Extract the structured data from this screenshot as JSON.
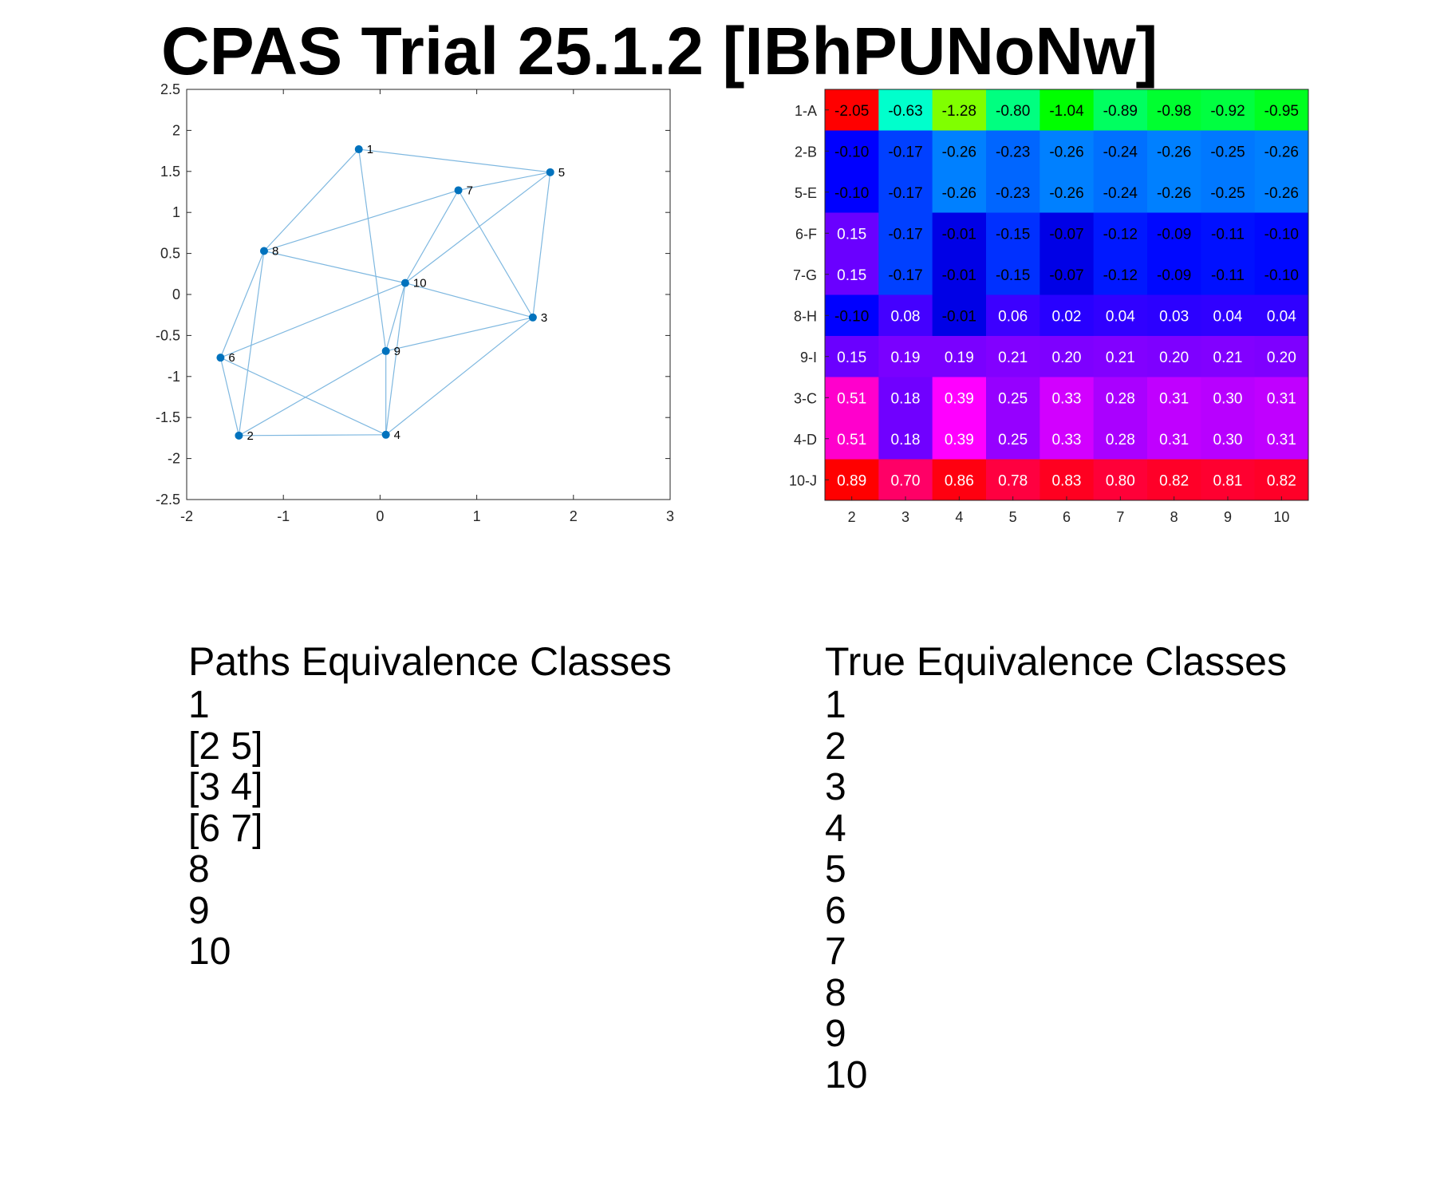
{
  "title": "CPAS Trial 25.1.2 [IBhPUNoNw]",
  "colors": {
    "node": "#0072BD",
    "edge": "#7fb8e0"
  },
  "chart_data": [
    {
      "type": "scatter",
      "xlim": [
        -2,
        3
      ],
      "ylim": [
        -2.5,
        2.5
      ],
      "xticks": [
        "-2",
        "-1",
        "0",
        "1",
        "2",
        "3"
      ],
      "yticks": [
        "2.5",
        "2",
        "1.5",
        "1",
        "0.5",
        "0",
        "-0.5",
        "-1",
        "-1.5",
        "-2",
        "-2.5"
      ],
      "grid": false,
      "nodes": [
        {
          "label": "1",
          "x": -0.22,
          "y": 1.77
        },
        {
          "label": "2",
          "x": -1.46,
          "y": -1.72
        },
        {
          "label": "3",
          "x": 1.58,
          "y": -0.28
        },
        {
          "label": "4",
          "x": 0.06,
          "y": -1.71
        },
        {
          "label": "5",
          "x": 1.76,
          "y": 1.49
        },
        {
          "label": "6",
          "x": -1.65,
          "y": -0.77
        },
        {
          "label": "7",
          "x": 0.81,
          "y": 1.27
        },
        {
          "label": "8",
          "x": -1.2,
          "y": 0.53
        },
        {
          "label": "9",
          "x": 0.06,
          "y": -0.69
        },
        {
          "label": "10",
          "x": 0.26,
          "y": 0.14
        }
      ],
      "edges": [
        [
          1,
          5
        ],
        [
          1,
          8
        ],
        [
          1,
          9
        ],
        [
          5,
          10
        ],
        [
          5,
          3
        ],
        [
          7,
          5
        ],
        [
          7,
          8
        ],
        [
          7,
          10
        ],
        [
          7,
          3
        ],
        [
          8,
          10
        ],
        [
          8,
          6
        ],
        [
          8,
          2
        ],
        [
          10,
          3
        ],
        [
          10,
          6
        ],
        [
          10,
          9
        ],
        [
          10,
          4
        ],
        [
          9,
          3
        ],
        [
          9,
          2
        ],
        [
          9,
          4
        ],
        [
          6,
          2
        ],
        [
          6,
          4
        ],
        [
          2,
          4
        ],
        [
          3,
          4
        ]
      ]
    },
    {
      "type": "heatmap",
      "x": [
        "2",
        "3",
        "4",
        "5",
        "6",
        "7",
        "8",
        "9",
        "10"
      ],
      "y": [
        "1-A",
        "2-B",
        "5-E",
        "6-F",
        "7-G",
        "8-H",
        "9-I",
        "3-C",
        "4-D",
        "10-J"
      ],
      "values": [
        [
          -2.05,
          -0.63,
          -1.28,
          -0.8,
          -1.04,
          -0.89,
          -0.98,
          -0.92,
          -0.95
        ],
        [
          -0.1,
          -0.17,
          -0.26,
          -0.23,
          -0.26,
          -0.24,
          -0.26,
          -0.25,
          -0.26
        ],
        [
          -0.1,
          -0.17,
          -0.26,
          -0.23,
          -0.26,
          -0.24,
          -0.26,
          -0.25,
          -0.26
        ],
        [
          0.15,
          -0.17,
          -0.01,
          -0.15,
          -0.07,
          -0.12,
          -0.09,
          -0.11,
          -0.1
        ],
        [
          0.15,
          -0.17,
          -0.01,
          -0.15,
          -0.07,
          -0.12,
          -0.09,
          -0.11,
          -0.1
        ],
        [
          -0.1,
          0.08,
          -0.01,
          0.06,
          0.02,
          0.04,
          0.03,
          0.04,
          0.04
        ],
        [
          0.15,
          0.19,
          0.19,
          0.21,
          0.2,
          0.21,
          0.2,
          0.21,
          0.2
        ],
        [
          0.51,
          0.18,
          0.39,
          0.25,
          0.33,
          0.28,
          0.31,
          0.3,
          0.31
        ],
        [
          0.51,
          0.18,
          0.39,
          0.25,
          0.33,
          0.28,
          0.31,
          0.3,
          0.31
        ],
        [
          0.89,
          0.7,
          0.86,
          0.78,
          0.83,
          0.8,
          0.82,
          0.81,
          0.82
        ]
      ],
      "cell_colors": [
        [
          "#ff0000",
          "#00ffcc",
          "#80ff00",
          "#00ff80",
          "#00ff00",
          "#00ff60",
          "#00ff30",
          "#00ff40",
          "#00ff20"
        ],
        [
          "#0000ff",
          "#0040ff",
          "#0080ff",
          "#0066ff",
          "#0080ff",
          "#0070ff",
          "#0080ff",
          "#0078ff",
          "#0080ff"
        ],
        [
          "#0000ff",
          "#0040ff",
          "#0080ff",
          "#0066ff",
          "#0080ff",
          "#0070ff",
          "#0080ff",
          "#0078ff",
          "#0080ff"
        ],
        [
          "#6a00ff",
          "#0040ff",
          "#0000e6",
          "#0030ff",
          "#0000e6",
          "#0018ff",
          "#0008ff",
          "#0010ff",
          "#0008ff"
        ],
        [
          "#6a00ff",
          "#0040ff",
          "#0000e6",
          "#0030ff",
          "#0000e6",
          "#0018ff",
          "#0008ff",
          "#0010ff",
          "#0008ff"
        ],
        [
          "#0000ff",
          "#4400ff",
          "#0000e6",
          "#3c00ff",
          "#2800ff",
          "#3000ff",
          "#2c00ff",
          "#3000ff",
          "#3000ff"
        ],
        [
          "#6a00ff",
          "#7a00ff",
          "#7a00ff",
          "#8200ff",
          "#7e00ff",
          "#8200ff",
          "#7e00ff",
          "#8200ff",
          "#7e00ff"
        ],
        [
          "#ff00cc",
          "#7000ff",
          "#ff00ff",
          "#9600ff",
          "#d200ff",
          "#aa00ff",
          "#c000ff",
          "#b800ff",
          "#c000ff"
        ],
        [
          "#ff00cc",
          "#7000ff",
          "#ff00ff",
          "#9600ff",
          "#d200ff",
          "#aa00ff",
          "#c000ff",
          "#b800ff",
          "#c000ff"
        ],
        [
          "#ff0000",
          "#ff0066",
          "#ff0010",
          "#ff0040",
          "#ff0020",
          "#ff0038",
          "#ff0028",
          "#ff0030",
          "#ff0028"
        ]
      ]
    }
  ],
  "paths_classes": {
    "heading": "Paths Equivalence Classes",
    "items": [
      "1",
      "[2 5]",
      "[3 4]",
      "[6 7]",
      "8",
      "9",
      "10"
    ]
  },
  "true_classes": {
    "heading": "True Equivalence Classes",
    "items": [
      "1",
      "2",
      "3",
      "4",
      "5",
      "6",
      "7",
      "8",
      "9",
      "10"
    ]
  }
}
